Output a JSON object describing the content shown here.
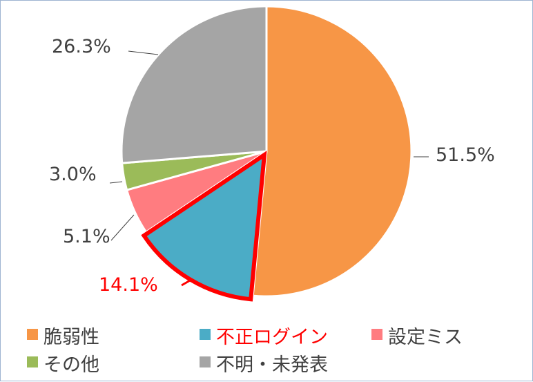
{
  "chart_data": {
    "type": "pie",
    "categories": [
      "脆弱性",
      "不正ログイン",
      "設定ミス",
      "その他",
      "不明・未発表"
    ],
    "values": [
      51.5,
      14.1,
      5.1,
      3.0,
      26.3
    ],
    "data_labels": [
      "51.5%",
      "14.1%",
      "5.1%",
      "3.0%",
      "26.3%"
    ],
    "colors": [
      "#f79646",
      "#4bacc6",
      "#ff7c80",
      "#9bbb59",
      "#a5a5a5"
    ],
    "highlight": {
      "index": 1,
      "outline_color": "#ff0000",
      "label_color": "#ff0000",
      "legend_text_color": "#ff0000"
    },
    "legend": {
      "position": "bottom",
      "columns": 3
    },
    "title": ""
  }
}
